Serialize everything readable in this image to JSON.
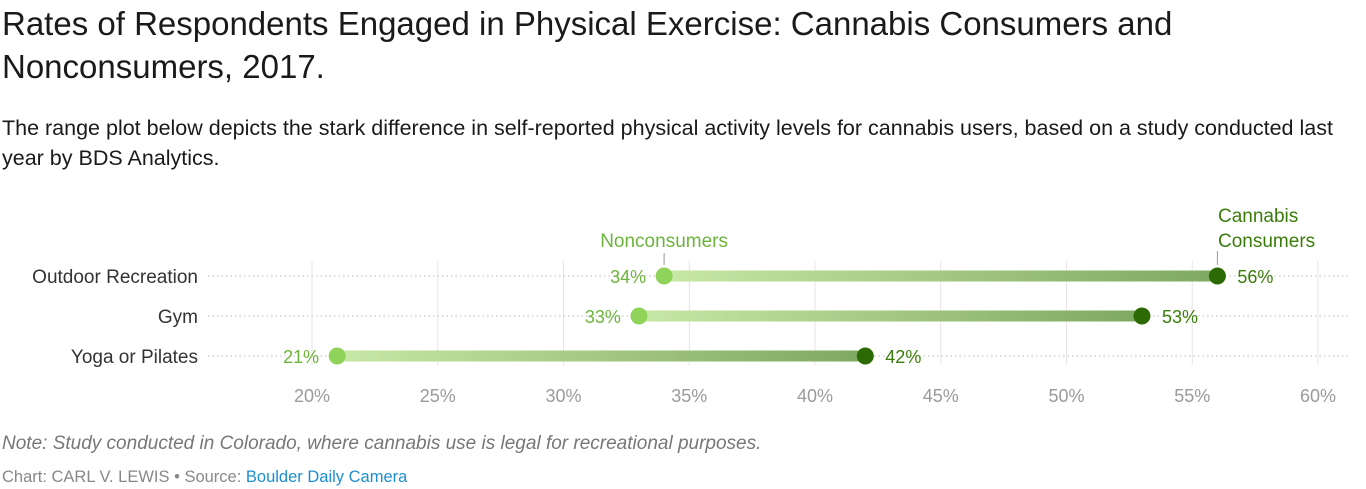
{
  "header": {
    "title": "Rates of Respondents Engaged in Physical Exercise: Cannabis Consumers and Nonconsumers, 2017.",
    "subtitle": "The range plot below depicts the stark difference in self-reported physical activity levels for cannabis users, based on a study conducted last year by BDS Analytics."
  },
  "footer": {
    "note": "Note: Study conducted in Colorado, where cannabis use is legal for recreational purposes.",
    "credit_prefix": "Chart: CARL V. LEWIS • Source: ",
    "source_name": "Boulder Daily Camera"
  },
  "colors": {
    "nonconsumers": "#8fd35a",
    "consumers": "#2c6a05",
    "nonconsumers_label": "#6cb43c",
    "consumers_label": "#3a7d0a",
    "axis_text": "#9a9a9a",
    "grid": "#e6e6e6"
  },
  "chart_data": {
    "type": "range",
    "x_unit": "%",
    "xlim": [
      20,
      60
    ],
    "x_ticks": [
      20,
      25,
      30,
      35,
      40,
      45,
      50,
      55,
      60
    ],
    "x_tick_labels": [
      "20%",
      "25%",
      "30%",
      "35%",
      "40%",
      "45%",
      "50%",
      "55%",
      "60%"
    ],
    "categories": [
      "Outdoor Recreation",
      "Gym",
      "Yoga or Pilates"
    ],
    "series": [
      {
        "name": "Nonconsumers",
        "values": [
          34,
          33,
          21
        ],
        "value_labels": [
          "34%",
          "33%",
          "21%"
        ]
      },
      {
        "name": "Cannabis Consumers",
        "name_lines": [
          "Cannabis",
          "Consumers"
        ],
        "values": [
          56,
          53,
          42
        ],
        "value_labels": [
          "56%",
          "53%",
          "42%"
        ]
      }
    ],
    "grid": true
  }
}
